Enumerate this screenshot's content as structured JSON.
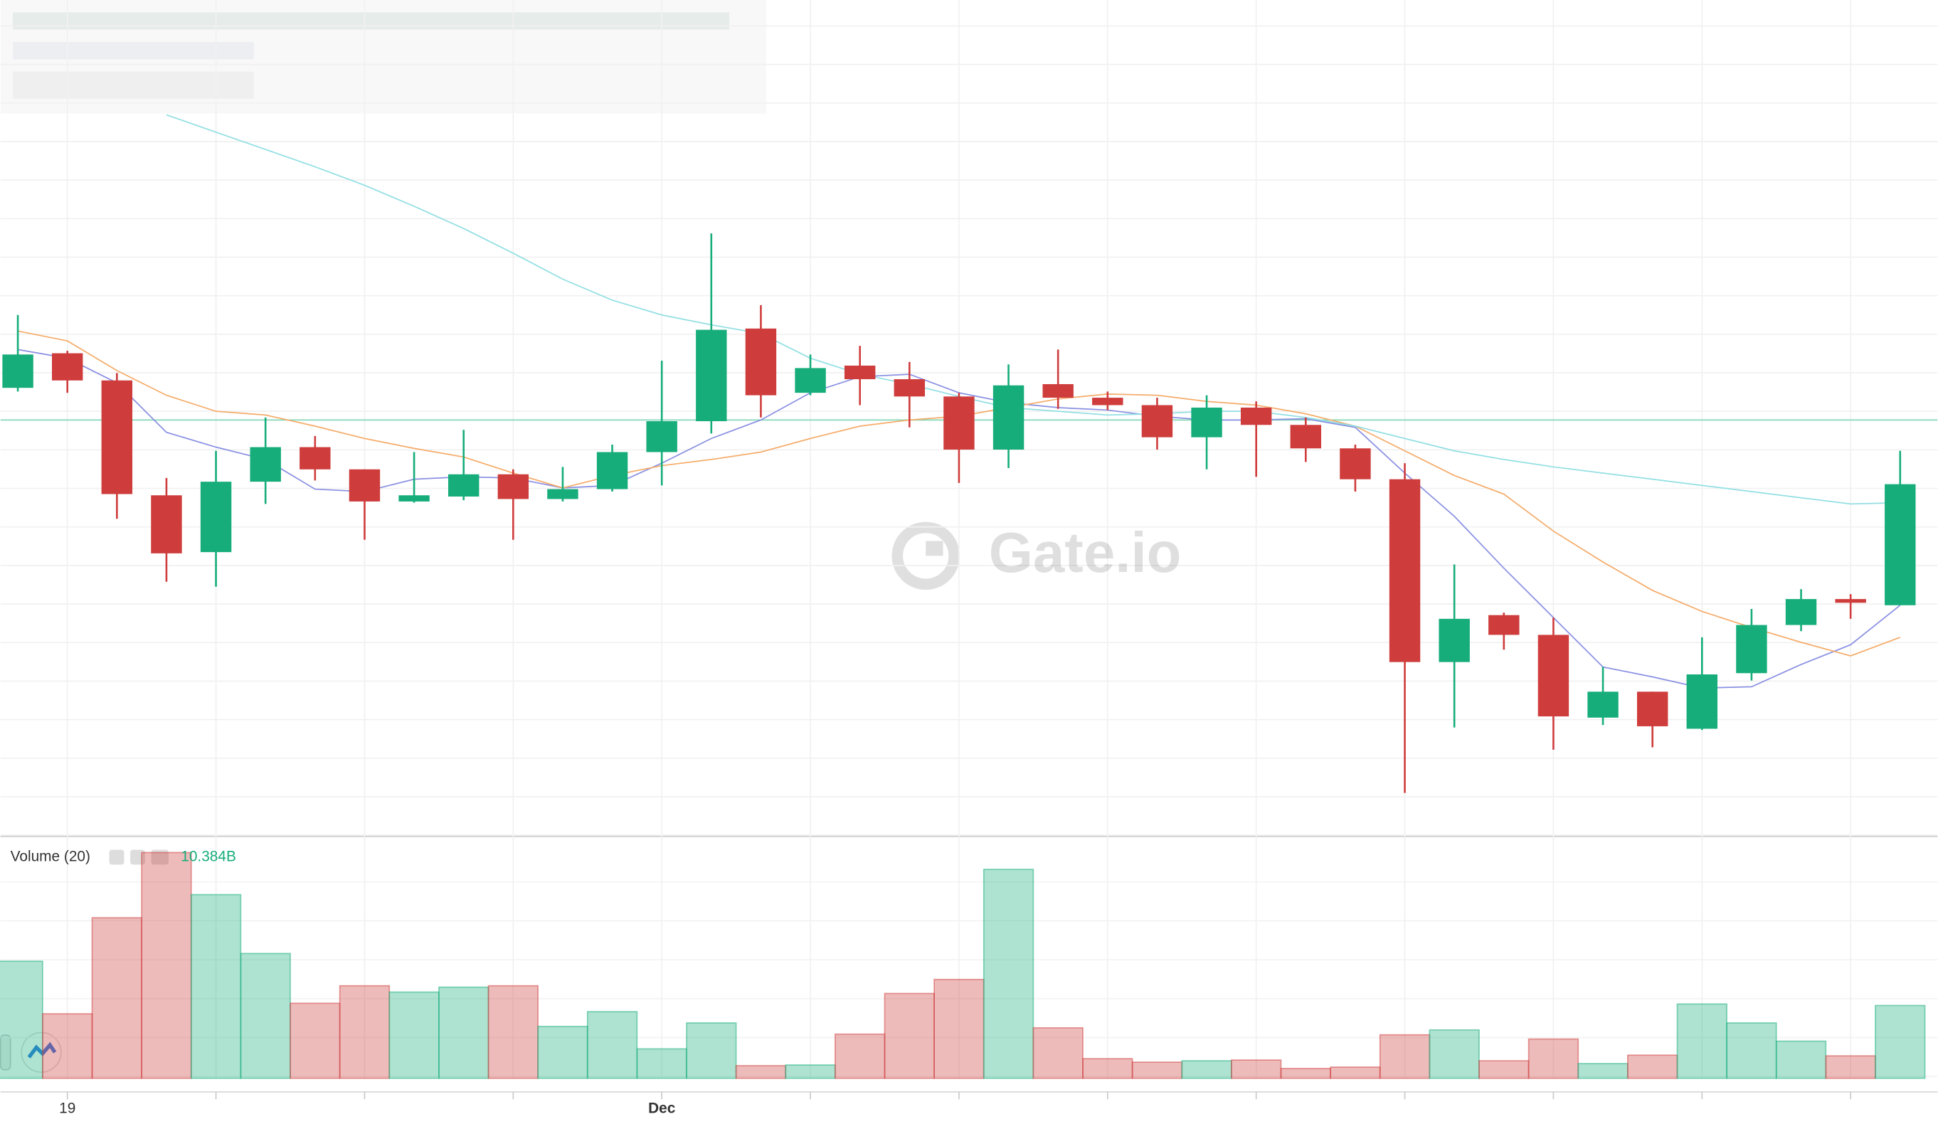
{
  "chart_data": {
    "type": "candlestick",
    "categories": [
      null,
      "19",
      null,
      null,
      null,
      null,
      null,
      null,
      null,
      null,
      null,
      null,
      null,
      "Dec",
      null,
      null,
      null,
      null,
      null,
      null,
      null,
      null,
      null,
      null,
      null,
      null,
      null,
      null,
      null,
      null,
      null,
      null,
      null,
      null,
      null,
      null,
      null,
      null,
      null
    ],
    "open": [
      386,
      414,
      392,
      299,
      253,
      310,
      338,
      320,
      294,
      298,
      316,
      296,
      304,
      334,
      359,
      434,
      382,
      404,
      393,
      379,
      336,
      389,
      378,
      372,
      346,
      370,
      356,
      337,
      312,
      164,
      202,
      186,
      119,
      140,
      110,
      155,
      194,
      215,
      210
    ],
    "high": [
      445,
      416,
      398,
      313,
      335,
      362,
      347,
      320,
      334,
      352,
      320,
      322,
      340,
      408,
      511,
      453,
      413,
      420,
      407,
      382,
      405,
      417,
      383,
      378,
      380,
      375,
      362,
      340,
      325,
      243,
      204,
      200,
      160,
      140,
      184,
      207,
      223,
      219,
      335
    ],
    "low": [
      383,
      382,
      280,
      229,
      225,
      292,
      311,
      263,
      293,
      295,
      263,
      294,
      302,
      307,
      349,
      362,
      380,
      372,
      354,
      309,
      321,
      369,
      368,
      336,
      320,
      314,
      326,
      302,
      58,
      111,
      174,
      93,
      113,
      95,
      109,
      149,
      189,
      199,
      210
    ],
    "close": [
      413,
      392,
      300,
      252,
      310,
      338,
      320,
      294,
      299,
      316,
      296,
      304,
      334,
      359,
      433,
      380,
      402,
      393,
      379,
      336,
      388,
      378,
      372,
      346,
      370,
      356,
      337,
      312,
      164,
      199,
      186,
      120,
      140,
      112,
      154,
      194,
      215,
      212,
      308
    ],
    "up_color": "#16ad7b",
    "down_color": "#cf3c3c",
    "ylim": [
      23,
      700
    ],
    "grid": true,
    "moving_averages": [
      {
        "color": "#8a90e2",
        "values": [
          417,
          410,
          390,
          350,
          338,
          328,
          304,
          302,
          312,
          314,
          313,
          305,
          307,
          325,
          345,
          360,
          382,
          395,
          397,
          382,
          374,
          370,
          368,
          363,
          360,
          360,
          361,
          354,
          317,
          282,
          240,
          200,
          160,
          152,
          143,
          144,
          162,
          178,
          210
        ]
      },
      {
        "color": "#f5ac6a",
        "values": [
          432,
          424,
          400,
          380,
          367,
          364,
          355,
          345,
          337,
          330,
          317,
          305,
          315,
          323,
          328,
          334,
          345,
          355,
          360,
          363,
          370,
          377,
          381,
          380,
          375,
          372,
          365,
          355,
          335,
          315,
          300,
          270,
          245,
          222,
          205,
          192,
          180,
          169,
          184
        ]
      },
      {
        "color": "#93dfe3",
        "values": [
          null,
          null,
          null,
          607,
          593,
          579,
          565,
          550,
          533,
          515,
          495,
          474,
          457,
          445,
          437,
          430,
          410,
          397,
          389,
          379,
          370,
          367,
          364,
          365,
          367,
          367,
          362,
          355,
          345,
          335,
          328,
          322,
          317,
          312,
          307,
          302,
          297,
          292,
          293
        ]
      }
    ],
    "price_line": 360,
    "price_line_color": "#86d8b8",
    "watermark": "Gate.io",
    "volume": {
      "label": "Volume (20)",
      "current_label": "10.384B",
      "ylim": [
        0,
        34
      ],
      "values": [
        16.7,
        9.2,
        22.9,
        32.2,
        26.2,
        17.8,
        10.7,
        13.2,
        12.3,
        13.0,
        13.2,
        7.4,
        9.5,
        4.2,
        7.9,
        1.8,
        1.9,
        6.3,
        12.1,
        14.1,
        29.8,
        7.2,
        2.8,
        2.3,
        2.5,
        2.6,
        1.4,
        1.6,
        6.2,
        6.9,
        2.5,
        5.6,
        2.1,
        3.3,
        10.6,
        7.9,
        5.3,
        3.2,
        10.384
      ]
    }
  }
}
